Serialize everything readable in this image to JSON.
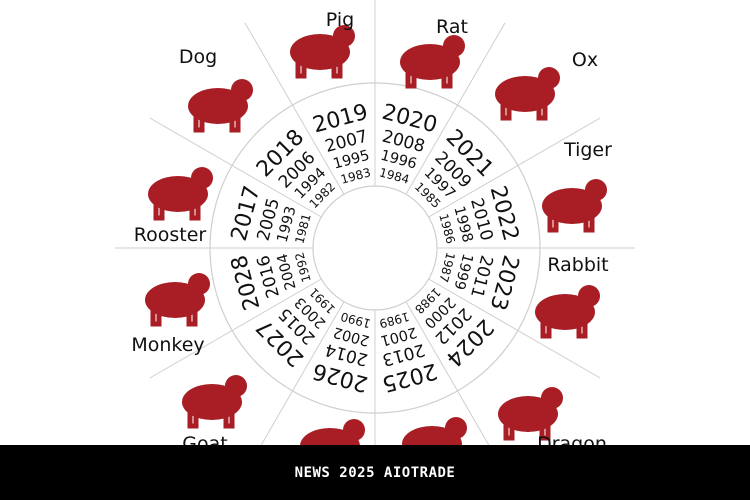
{
  "colors": {
    "animal": "#a81e24",
    "line": "#cfcfcf",
    "text": "#111111",
    "bar": "#000000"
  },
  "sectors": [
    {
      "animal": "Rat",
      "label": "Rat",
      "years": [
        "2020",
        "2008",
        "1996",
        "1984"
      ]
    },
    {
      "animal": "Ox",
      "label": "Ox",
      "years": [
        "2021",
        "2009",
        "1997",
        "1985"
      ]
    },
    {
      "animal": "Tiger",
      "label": "Tiger",
      "years": [
        "2022",
        "2010",
        "1998",
        "1986"
      ]
    },
    {
      "animal": "Rabbit",
      "label": "Rabbit",
      "years": [
        "2023",
        "2011",
        "1999",
        "1987"
      ]
    },
    {
      "animal": "Dragon",
      "label": "Dragon",
      "years": [
        "2024",
        "2012",
        "2000",
        "1988"
      ]
    },
    {
      "animal": "Snake",
      "label": "",
      "years": [
        "2025",
        "2013",
        "2001",
        "1989"
      ]
    },
    {
      "animal": "Horse",
      "label": "",
      "years": [
        "2026",
        "2014",
        "2002",
        "1990"
      ]
    },
    {
      "animal": "Goat",
      "label": "Goat",
      "years": [
        "2027",
        "2015",
        "2003",
        "1991"
      ]
    },
    {
      "animal": "Monkey",
      "label": "Monkey",
      "years": [
        "2028",
        "2016",
        "2004",
        "1992"
      ]
    },
    {
      "animal": "Rooster",
      "label": "Rooster",
      "years": [
        "2017",
        "2005",
        "1993",
        "1981"
      ]
    },
    {
      "animal": "Dog",
      "label": "Dog",
      "years": [
        "2018",
        "2006",
        "1994",
        "1982"
      ]
    },
    {
      "animal": "Pig",
      "label": "Pig",
      "years": [
        "2019",
        "2007",
        "1995",
        "1983"
      ]
    }
  ],
  "footer": {
    "text": "NEWS 2025 AIOTRADE"
  }
}
